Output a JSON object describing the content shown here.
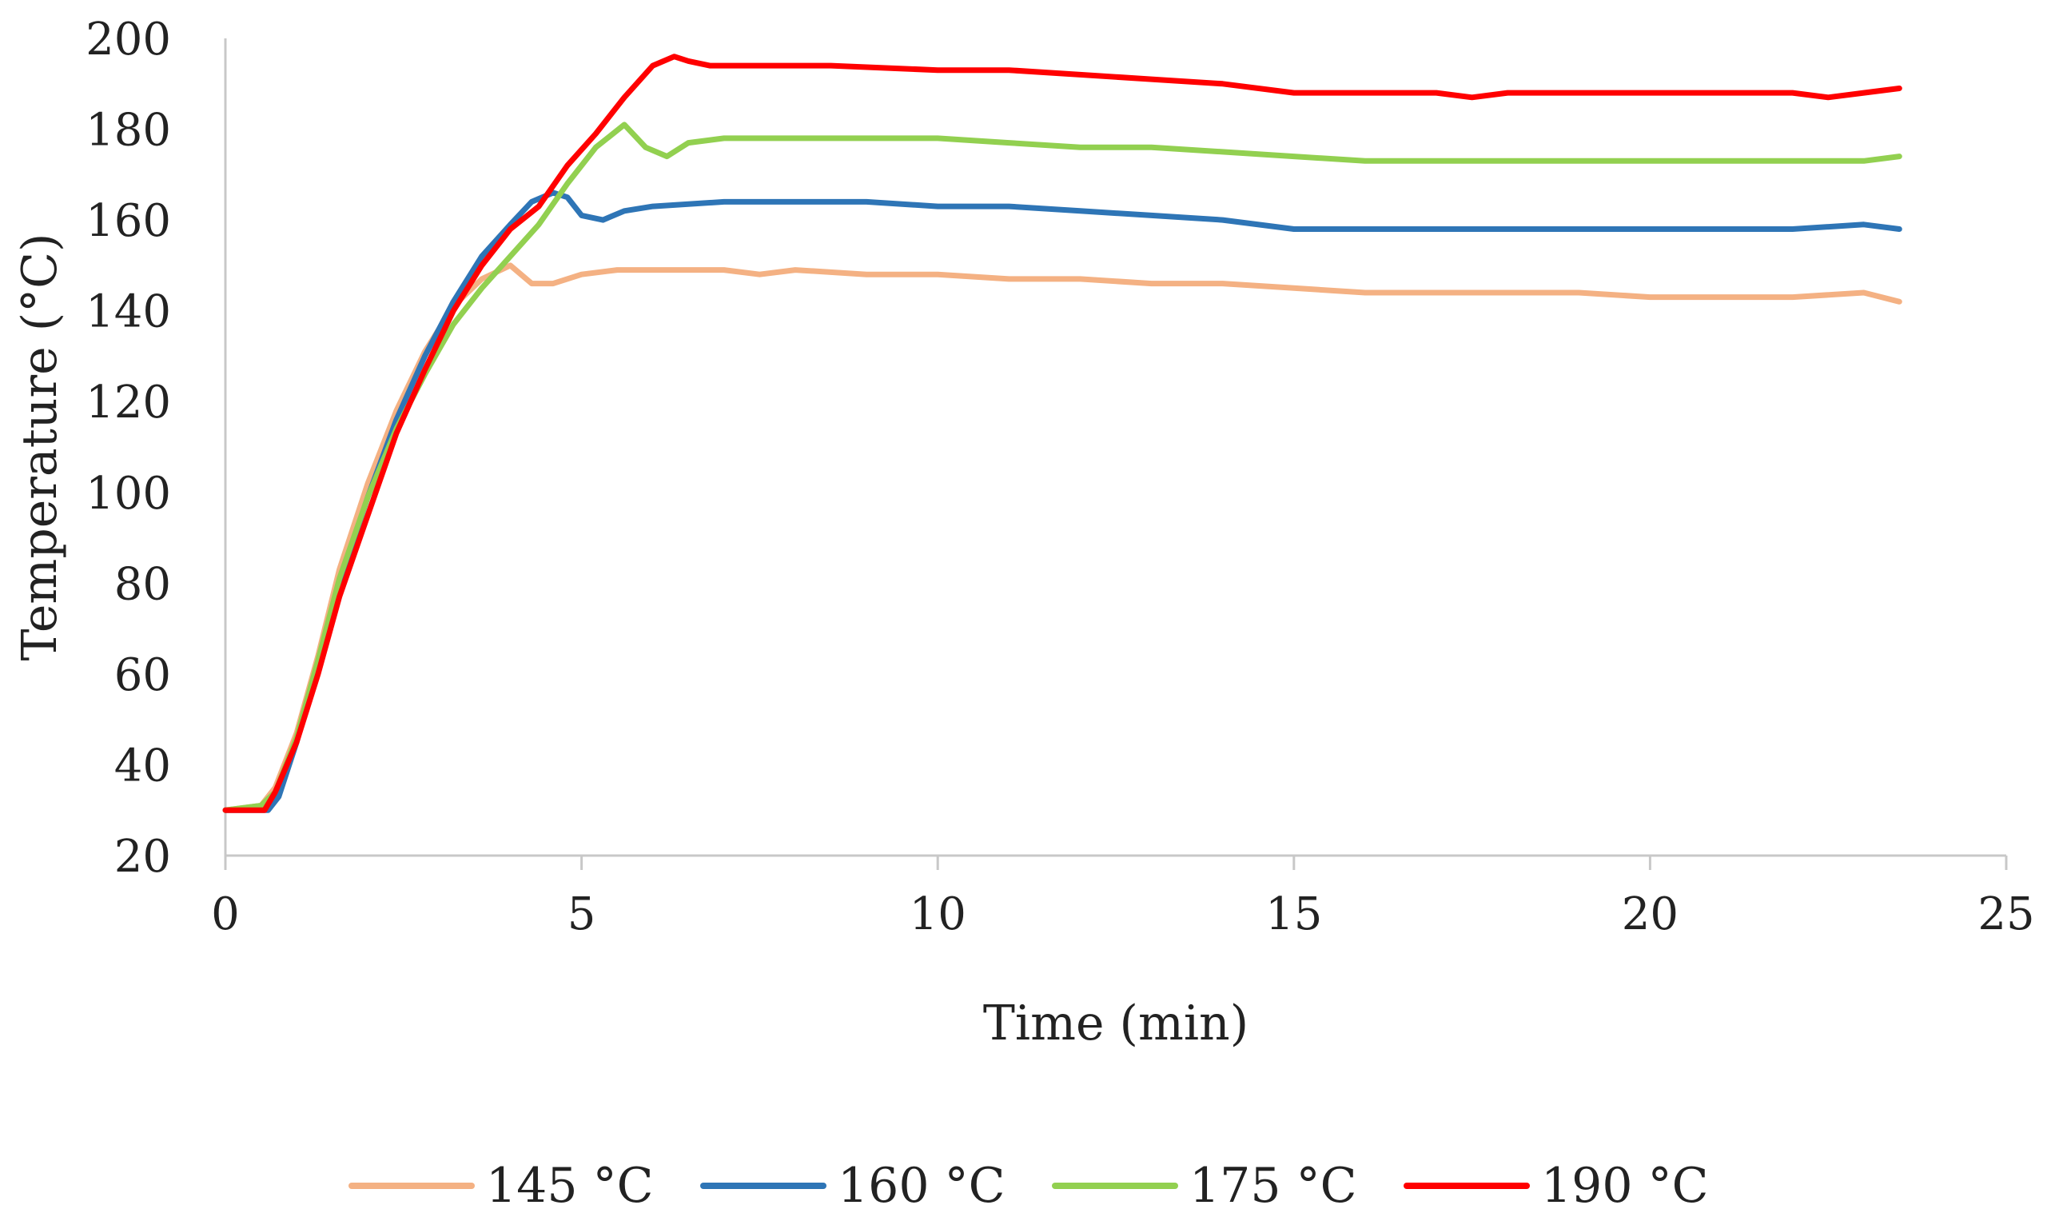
{
  "chart_data": {
    "type": "line",
    "title": "",
    "xlabel": "Time (min)",
    "ylabel": "Temperature (°C)",
    "xlim": [
      0,
      25
    ],
    "ylim": [
      20,
      200
    ],
    "xticks": [
      0,
      5,
      10,
      15,
      20,
      25
    ],
    "yticks": [
      20,
      40,
      60,
      80,
      100,
      120,
      140,
      160,
      180,
      200
    ],
    "grid": false,
    "legend_position": "bottom",
    "series": [
      {
        "name": "145 °C",
        "color": "#F4B183",
        "x": [
          0,
          0.5,
          0.7,
          1.0,
          1.3,
          1.6,
          2.0,
          2.4,
          2.8,
          3.2,
          3.6,
          4.0,
          4.3,
          4.6,
          5.0,
          5.5,
          6.0,
          6.5,
          7.0,
          7.5,
          8.0,
          9.0,
          10.0,
          11.0,
          12.0,
          13.0,
          14.0,
          15.0,
          16.0,
          17.0,
          18.0,
          19.0,
          20.0,
          21.0,
          22.0,
          23.0,
          23.5
        ],
        "y": [
          30,
          31,
          35,
          47,
          64,
          83,
          102,
          118,
          131,
          141,
          147,
          150,
          146,
          146,
          148,
          149,
          149,
          149,
          149,
          148,
          149,
          148,
          148,
          147,
          147,
          146,
          146,
          145,
          144,
          144,
          144,
          144,
          143,
          143,
          143,
          144,
          142
        ]
      },
      {
        "name": "160 °C",
        "color": "#2E75B6",
        "x": [
          0,
          0.6,
          0.75,
          1.0,
          1.3,
          1.6,
          2.0,
          2.4,
          2.8,
          3.2,
          3.6,
          4.0,
          4.3,
          4.6,
          4.8,
          5.0,
          5.3,
          5.6,
          6.0,
          7.0,
          8.0,
          9.0,
          10.0,
          11.0,
          12.0,
          13.0,
          14.0,
          15.0,
          16.0,
          17.0,
          18.0,
          19.0,
          20.0,
          21.0,
          22.0,
          23.0,
          23.5
        ],
        "y": [
          30,
          30,
          33,
          45,
          62,
          80,
          99,
          116,
          130,
          142,
          152,
          159,
          164,
          166,
          165,
          161,
          160,
          162,
          163,
          164,
          164,
          164,
          163,
          163,
          162,
          161,
          160,
          158,
          158,
          158,
          158,
          158,
          158,
          158,
          158,
          159,
          158
        ]
      },
      {
        "name": "175 °C",
        "color": "#92D050",
        "x": [
          0,
          0.5,
          0.7,
          1.0,
          1.3,
          1.6,
          2.0,
          2.4,
          2.8,
          3.2,
          3.6,
          4.0,
          4.4,
          4.8,
          5.2,
          5.6,
          5.9,
          6.2,
          6.5,
          7.0,
          8.0,
          9.0,
          10.0,
          11.0,
          12.0,
          13.0,
          14.0,
          15.0,
          16.0,
          17.0,
          18.0,
          19.0,
          20.0,
          21.0,
          22.0,
          23.0,
          23.5
        ],
        "y": [
          30,
          31,
          34,
          46,
          63,
          81,
          99,
          114,
          126,
          137,
          145,
          152,
          159,
          168,
          176,
          181,
          176,
          174,
          177,
          178,
          178,
          178,
          178,
          177,
          176,
          176,
          175,
          174,
          173,
          173,
          173,
          173,
          173,
          173,
          173,
          173,
          174
        ]
      },
      {
        "name": "190 °C",
        "color": "#FF0000",
        "x": [
          0,
          0.55,
          0.7,
          1.0,
          1.3,
          1.6,
          2.0,
          2.4,
          2.8,
          3.2,
          3.6,
          4.0,
          4.4,
          4.8,
          5.2,
          5.6,
          6.0,
          6.3,
          6.5,
          6.8,
          7.5,
          8.5,
          10.0,
          11.0,
          12.0,
          13.0,
          14.0,
          15.0,
          16.0,
          17.0,
          17.5,
          18.0,
          19.0,
          20.0,
          21.0,
          22.0,
          22.5,
          23.0,
          23.5
        ],
        "y": [
          30,
          30,
          34,
          45,
          60,
          77,
          95,
          113,
          127,
          140,
          150,
          158,
          163,
          172,
          179,
          187,
          194,
          196,
          195,
          194,
          194,
          194,
          193,
          193,
          192,
          191,
          190,
          188,
          188,
          188,
          187,
          188,
          188,
          188,
          188,
          188,
          187,
          188,
          189
        ]
      }
    ]
  }
}
